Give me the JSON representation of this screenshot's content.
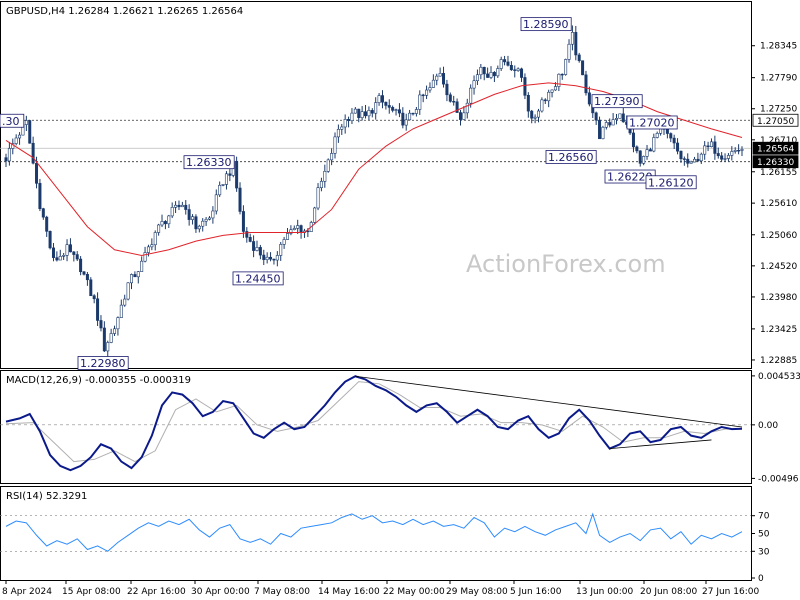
{
  "chart_data": [
    {
      "type": "candlestick",
      "title": "GBPUSD,H4  1.26284 1.26621 1.26265 1.26564",
      "ylim": [
        1.2278,
        1.2907
      ],
      "y_ticks": [
        "1.28345",
        "1.27790",
        "1.27250",
        "1.26710",
        "1.26155",
        "1.25610",
        "1.25060",
        "1.24520",
        "1.23980",
        "1.23425",
        "1.22885"
      ],
      "x_ticks": [
        "8 Apr 2024",
        "15 Apr 08:00",
        "22 Apr 16:00",
        "30 Apr 00:00",
        "7 May 08:00",
        "14 May 16:00",
        "22 May 00:00",
        "29 May 08:00",
        "5 Jun 16:00",
        "13 Jun 00:00",
        "20 Jun 08:00",
        "27 Jun 16:00"
      ],
      "price_tags": [
        {
          "value": "1.27050",
          "style": "outline"
        },
        {
          "value": "1.26564",
          "style": "current"
        },
        {
          "value": "1.26330",
          "style": "dark"
        }
      ],
      "annotations": [
        {
          "text": ".30",
          "price": 1.2705,
          "note": "partial"
        },
        {
          "text": "1.22980",
          "price": 1.2298
        },
        {
          "text": "1.26330",
          "price": 1.2633
        },
        {
          "text": "1.24450",
          "price": 1.2445
        },
        {
          "text": "1.28590",
          "price": 1.2859
        },
        {
          "text": "1.26560",
          "price": 1.2656
        },
        {
          "text": "1.27390",
          "price": 1.2739
        },
        {
          "text": "1.27020",
          "price": 1.2702
        },
        {
          "text": "1.26220",
          "price": 1.2622
        },
        {
          "text": "1.26120",
          "price": 1.2612
        }
      ],
      "horizontal_levels": [
        1.2705,
        1.2633
      ],
      "close_path": [
        [
          0,
          1.264
        ],
        [
          3,
          1.2675
        ],
        [
          6,
          1.27
        ],
        [
          10,
          1.256
        ],
        [
          14,
          1.246
        ],
        [
          18,
          1.248
        ],
        [
          22,
          1.245
        ],
        [
          26,
          1.239
        ],
        [
          29,
          1.231
        ],
        [
          32,
          1.2345
        ],
        [
          36,
          1.242
        ],
        [
          40,
          1.2455
        ],
        [
          44,
          1.251
        ],
        [
          48,
          1.254
        ],
        [
          52,
          1.256
        ],
        [
          56,
          1.252
        ],
        [
          60,
          1.2535
        ],
        [
          64,
          1.26
        ],
        [
          67,
          1.2625
        ],
        [
          70,
          1.251
        ],
        [
          74,
          1.248
        ],
        [
          78,
          1.2455
        ],
        [
          82,
          1.25
        ],
        [
          86,
          1.252
        ],
        [
          89,
          1.251
        ],
        [
          92,
          1.258
        ],
        [
          95,
          1.263
        ],
        [
          98,
          1.269
        ],
        [
          102,
          1.272
        ],
        [
          106,
          1.271
        ],
        [
          110,
          1.274
        ],
        [
          114,
          1.272
        ],
        [
          118,
          1.27
        ],
        [
          122,
          1.274
        ],
        [
          125,
          1.276
        ],
        [
          128,
          1.279
        ],
        [
          131,
          1.274
        ],
        [
          134,
          1.271
        ],
        [
          137,
          1.276
        ],
        [
          140,
          1.28
        ],
        [
          143,
          1.278
        ],
        [
          146,
          1.281
        ],
        [
          149,
          1.28
        ],
        [
          152,
          1.278
        ],
        [
          155,
          1.27
        ],
        [
          158,
          1.274
        ],
        [
          161,
          1.276
        ],
        [
          164,
          1.279
        ],
        [
          167,
          1.285
        ],
        [
          169,
          1.28
        ],
        [
          172,
          1.2739
        ],
        [
          175,
          1.268
        ],
        [
          178,
          1.27
        ],
        [
          181,
          1.272
        ],
        [
          184,
          1.268
        ],
        [
          187,
          1.263
        ],
        [
          190,
          1.266
        ],
        [
          193,
          1.269
        ],
        [
          196,
          1.267
        ],
        [
          199,
          1.264
        ],
        [
          202,
          1.2625
        ],
        [
          205,
          1.265
        ],
        [
          208,
          1.266
        ],
        [
          211,
          1.2645
        ],
        [
          214,
          1.265
        ],
        [
          217,
          1.2656
        ]
      ],
      "ma_path": [
        [
          0,
          1.267
        ],
        [
          8,
          1.264
        ],
        [
          16,
          1.258
        ],
        [
          24,
          1.252
        ],
        [
          32,
          1.248
        ],
        [
          40,
          1.247
        ],
        [
          48,
          1.248
        ],
        [
          56,
          1.2495
        ],
        [
          64,
          1.2505
        ],
        [
          72,
          1.251
        ],
        [
          80,
          1.251
        ],
        [
          88,
          1.251
        ],
        [
          96,
          1.255
        ],
        [
          104,
          1.262
        ],
        [
          112,
          1.266
        ],
        [
          120,
          1.269
        ],
        [
          128,
          1.271
        ],
        [
          136,
          1.273
        ],
        [
          144,
          1.275
        ],
        [
          152,
          1.2765
        ],
        [
          160,
          1.277
        ],
        [
          168,
          1.2765
        ],
        [
          176,
          1.2755
        ],
        [
          184,
          1.274
        ],
        [
          192,
          1.272
        ],
        [
          200,
          1.2705
        ],
        [
          208,
          1.269
        ],
        [
          217,
          1.2675
        ]
      ]
    },
    {
      "type": "line",
      "title": "MACD(12,26,9) -0.000355 -0.000319",
      "ylim": [
        -0.0052,
        0.0048
      ],
      "y_ticks": [
        "0.004533",
        "0.00",
        "-0.00496"
      ],
      "macd_path": [
        [
          0,
          0.0003
        ],
        [
          4,
          0.0006
        ],
        [
          7,
          0.001
        ],
        [
          10,
          -0.0006
        ],
        [
          13,
          -0.0028
        ],
        [
          16,
          -0.0038
        ],
        [
          19,
          -0.0042
        ],
        [
          22,
          -0.0038
        ],
        [
          25,
          -0.003
        ],
        [
          28,
          -0.0018
        ],
        [
          31,
          -0.0022
        ],
        [
          34,
          -0.0034
        ],
        [
          37,
          -0.004
        ],
        [
          40,
          -0.003
        ],
        [
          43,
          -0.001
        ],
        [
          46,
          0.0018
        ],
        [
          49,
          0.003
        ],
        [
          52,
          0.0028
        ],
        [
          55,
          0.002
        ],
        [
          58,
          0.0008
        ],
        [
          61,
          0.0012
        ],
        [
          64,
          0.0022
        ],
        [
          67,
          0.002
        ],
        [
          70,
          0.0006
        ],
        [
          73,
          -0.0008
        ],
        [
          76,
          -0.0012
        ],
        [
          79,
          -0.0004
        ],
        [
          82,
          0.0002
        ],
        [
          85,
          -0.0004
        ],
        [
          88,
          -0.0002
        ],
        [
          91,
          0.0008
        ],
        [
          94,
          0.0018
        ],
        [
          97,
          0.003
        ],
        [
          100,
          0.004
        ],
        [
          103,
          0.0045
        ],
        [
          106,
          0.0042
        ],
        [
          109,
          0.0036
        ],
        [
          112,
          0.0032
        ],
        [
          115,
          0.0026
        ],
        [
          118,
          0.0018
        ],
        [
          121,
          0.0012
        ],
        [
          124,
          0.0018
        ],
        [
          127,
          0.002
        ],
        [
          130,
          0.0012
        ],
        [
          133,
          0.0002
        ],
        [
          136,
          0.0008
        ],
        [
          139,
          0.0014
        ],
        [
          142,
          0.0008
        ],
        [
          145,
          -0.0002
        ],
        [
          148,
          -0.0004
        ],
        [
          151,
          0.0004
        ],
        [
          154,
          0.0008
        ],
        [
          157,
          -0.0004
        ],
        [
          160,
          -0.0012
        ],
        [
          163,
          -0.0008
        ],
        [
          166,
          0.0006
        ],
        [
          169,
          0.0014
        ],
        [
          172,
          0.0004
        ],
        [
          175,
          -0.001
        ],
        [
          178,
          -0.0022
        ],
        [
          181,
          -0.0018
        ],
        [
          184,
          -0.0008
        ],
        [
          187,
          -0.0006
        ],
        [
          190,
          -0.0016
        ],
        [
          193,
          -0.0014
        ],
        [
          196,
          -0.0004
        ],
        [
          199,
          -0.0002
        ],
        [
          202,
          -0.001
        ],
        [
          205,
          -0.0012
        ],
        [
          208,
          -0.0006
        ],
        [
          211,
          -0.0002
        ],
        [
          214,
          -0.0004
        ],
        [
          217,
          -0.00036
        ]
      ],
      "signal_path": [
        [
          0,
          0.0001
        ],
        [
          8,
          0.0002
        ],
        [
          14,
          -0.0016
        ],
        [
          20,
          -0.0034
        ],
        [
          26,
          -0.0032
        ],
        [
          32,
          -0.0024
        ],
        [
          38,
          -0.0034
        ],
        [
          44,
          -0.0024
        ],
        [
          50,
          0.0014
        ],
        [
          56,
          0.0024
        ],
        [
          62,
          0.0012
        ],
        [
          68,
          0.0018
        ],
        [
          74,
          0.0
        ],
        [
          80,
          -0.0006
        ],
        [
          86,
          -0.0002
        ],
        [
          92,
          0.0004
        ],
        [
          98,
          0.0022
        ],
        [
          104,
          0.004
        ],
        [
          110,
          0.0038
        ],
        [
          116,
          0.0028
        ],
        [
          122,
          0.0016
        ],
        [
          128,
          0.0016
        ],
        [
          134,
          0.0008
        ],
        [
          140,
          0.001
        ],
        [
          146,
          0.0002
        ],
        [
          152,
          0.0002
        ],
        [
          158,
          0.0
        ],
        [
          164,
          -0.0006
        ],
        [
          170,
          0.0008
        ],
        [
          176,
          -0.0002
        ],
        [
          182,
          -0.0016
        ],
        [
          188,
          -0.0012
        ],
        [
          194,
          -0.0012
        ],
        [
          200,
          -0.0006
        ],
        [
          206,
          -0.0008
        ],
        [
          212,
          -0.0004
        ],
        [
          217,
          -0.00032
        ]
      ],
      "trendlines": [
        [
          [
            103,
            0.0045
          ],
          [
            217,
            -0.0002
          ]
        ],
        [
          [
            178,
            -0.0022
          ],
          [
            208,
            -0.0014
          ]
        ]
      ]
    },
    {
      "type": "line",
      "title": "RSI(14) 52.3291",
      "ylim": [
        0,
        100
      ],
      "y_ticks": [
        "70",
        "50",
        "30",
        "0"
      ],
      "levels": [
        70,
        30
      ],
      "rsi_path": [
        [
          0,
          58
        ],
        [
          3,
          64
        ],
        [
          6,
          62
        ],
        [
          9,
          48
        ],
        [
          12,
          36
        ],
        [
          15,
          42
        ],
        [
          18,
          38
        ],
        [
          21,
          44
        ],
        [
          24,
          32
        ],
        [
          27,
          36
        ],
        [
          30,
          30
        ],
        [
          33,
          40
        ],
        [
          36,
          48
        ],
        [
          39,
          56
        ],
        [
          42,
          62
        ],
        [
          45,
          58
        ],
        [
          48,
          64
        ],
        [
          51,
          60
        ],
        [
          54,
          66
        ],
        [
          57,
          54
        ],
        [
          60,
          46
        ],
        [
          63,
          56
        ],
        [
          66,
          60
        ],
        [
          69,
          44
        ],
        [
          72,
          40
        ],
        [
          75,
          44
        ],
        [
          78,
          38
        ],
        [
          81,
          50
        ],
        [
          84,
          46
        ],
        [
          87,
          56
        ],
        [
          90,
          58
        ],
        [
          93,
          60
        ],
        [
          96,
          62
        ],
        [
          99,
          68
        ],
        [
          102,
          72
        ],
        [
          105,
          66
        ],
        [
          108,
          70
        ],
        [
          111,
          62
        ],
        [
          114,
          64
        ],
        [
          117,
          60
        ],
        [
          120,
          66
        ],
        [
          123,
          60
        ],
        [
          126,
          64
        ],
        [
          129,
          58
        ],
        [
          132,
          60
        ],
        [
          135,
          56
        ],
        [
          138,
          68
        ],
        [
          141,
          62
        ],
        [
          144,
          46
        ],
        [
          147,
          56
        ],
        [
          150,
          52
        ],
        [
          153,
          58
        ],
        [
          156,
          52
        ],
        [
          159,
          48
        ],
        [
          162,
          54
        ],
        [
          165,
          58
        ],
        [
          168,
          62
        ],
        [
          171,
          50
        ],
        [
          173,
          72
        ],
        [
          175,
          48
        ],
        [
          178,
          40
        ],
        [
          181,
          46
        ],
        [
          184,
          50
        ],
        [
          187,
          42
        ],
        [
          190,
          54
        ],
        [
          193,
          56
        ],
        [
          196,
          44
        ],
        [
          199,
          52
        ],
        [
          202,
          38
        ],
        [
          205,
          48
        ],
        [
          208,
          44
        ],
        [
          211,
          50
        ],
        [
          214,
          46
        ],
        [
          217,
          52
        ]
      ]
    }
  ],
  "watermark": "ActionForex.com",
  "colors": {
    "bull_candle": "#1b3a6b",
    "bear_candle": "#1b3a6b",
    "ma": "#e0242b",
    "macd": "#0b1a8a",
    "signal": "#b0b0b0",
    "rsi": "#2d8cff",
    "grid": "#888888"
  }
}
